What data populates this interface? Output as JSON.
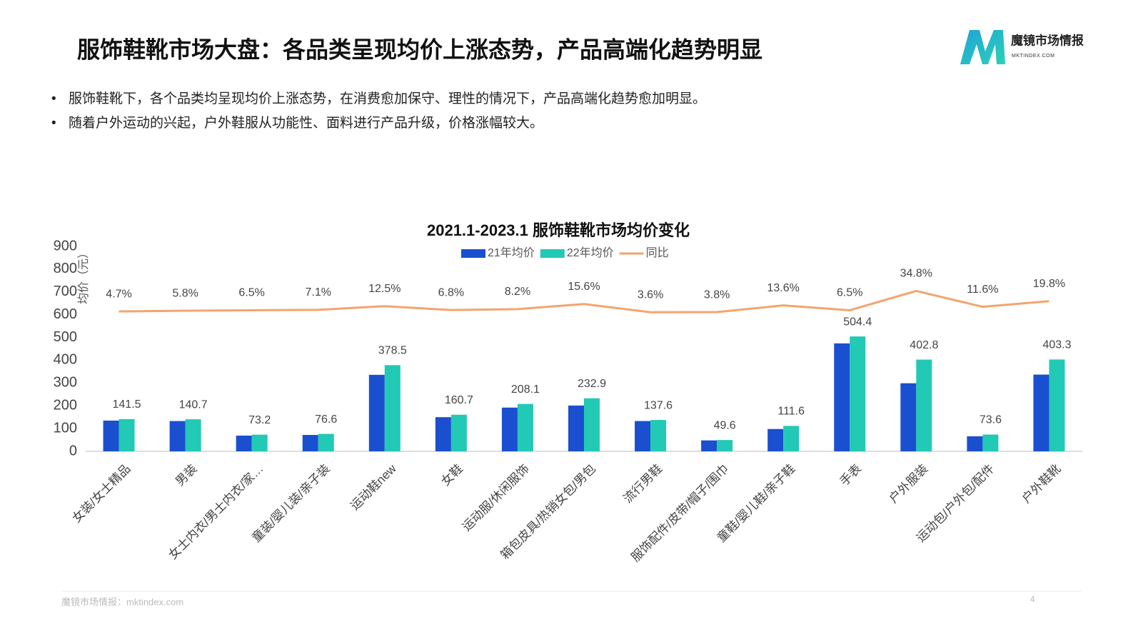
{
  "header": {
    "title": "服饰鞋靴市场大盘：各品类呈现均价上涨态势，产品高端化趋势明显"
  },
  "logo": {
    "name": "魔镜市场情报",
    "url": "MKTINDEX.COM"
  },
  "bullets": [
    "服饰鞋靴下，各个品类均呈现均价上涨态势，在消费愈加保守、理性的情况下，产品高端化趋势愈加明显。",
    "随着户外运动的兴起，户外鞋服从功能性、面料进行产品升级，价格涨幅较大。"
  ],
  "footer": {
    "source": "魔镜市场情报：mktindex.com",
    "page": "4"
  },
  "chart_data": {
    "type": "bar",
    "title": "2021.1-2023.1 服饰鞋靴市场均价变化",
    "y_label": "均价（元）",
    "categories": [
      "女装/女士精品",
      "男装",
      "女士内衣/男士内衣/家…",
      "童装/婴儿装/亲子装",
      "运动鞋new",
      "女鞋",
      "运动服/休闲服饰",
      "箱包皮具/热销女包/男包",
      "流行男鞋",
      "服饰配件/皮带/帽子/围巾",
      "童鞋/婴儿鞋/亲子鞋",
      "手表",
      "户外服装",
      "运动包/户外包/配件",
      "户外鞋靴"
    ],
    "series": [
      {
        "name": "21年均价",
        "color": "#1a4fcf",
        "values": [
          135,
          133,
          69,
          72,
          336,
          150,
          192,
          201,
          133,
          48,
          98,
          474,
          299,
          66,
          337
        ]
      },
      {
        "name": "22年均价",
        "color": "#22c9b5",
        "values": [
          141.5,
          140.7,
          73.2,
          76.6,
          378.5,
          160.7,
          208.1,
          232.9,
          137.6,
          49.6,
          111.6,
          504.4,
          402.8,
          73.6,
          403.3
        ]
      },
      {
        "name": "同比",
        "color": "#f4a46e",
        "type": "line",
        "axis": "y2",
        "values": [
          4.7,
          5.8,
          6.5,
          7.1,
          12.5,
          6.8,
          8.2,
          15.6,
          3.6,
          3.8,
          13.6,
          6.5,
          34.8,
          11.6,
          19.8
        ],
        "value_labels": [
          "4.7%",
          "5.8%",
          "6.5%",
          "7.1%",
          "12.5%",
          "6.8%",
          "8.2%",
          "15.6%",
          "3.6%",
          "3.8%",
          "13.6%",
          "6.5%",
          "34.8%",
          "11.6%",
          "19.8%"
        ]
      }
    ],
    "ylim": [
      0,
      900
    ],
    "yticks": [
      0,
      100,
      200,
      300,
      400,
      500,
      600,
      700,
      800,
      900
    ],
    "y2lim": [
      -200,
      100
    ],
    "legend": "top",
    "grid": false
  }
}
